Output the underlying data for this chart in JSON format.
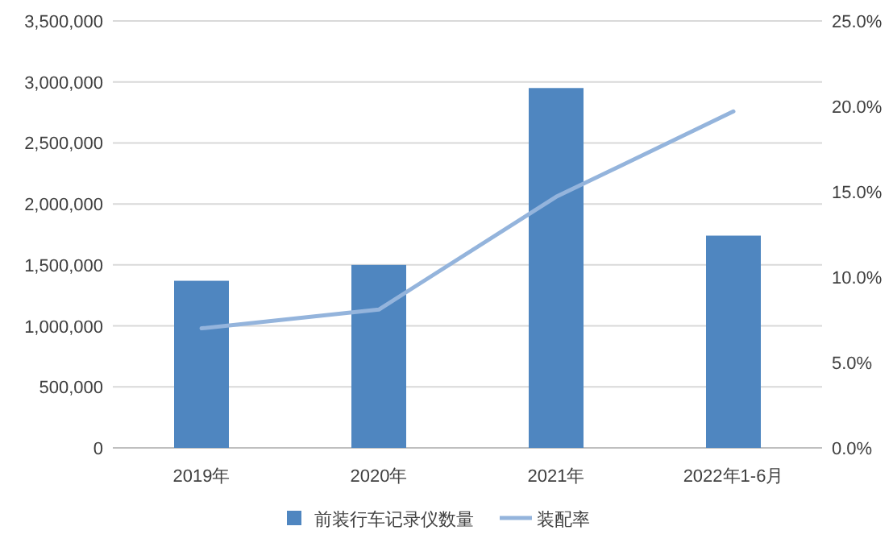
{
  "chart_data": {
    "type": "bar",
    "categories": [
      "2019年",
      "2020年",
      "2021年",
      "2022年1-6月"
    ],
    "series": [
      {
        "name": "前装行车记录仪数量",
        "color": "#4f86c0",
        "values": [
          1370000,
          1500000,
          2950000,
          1740000
        ]
      },
      {
        "name": "装配率",
        "type": "line",
        "axis": "y2",
        "color": "#94b4dc",
        "values": [
          7.0,
          8.1,
          14.7,
          19.7
        ]
      }
    ],
    "ylim": [
      0,
      3500000
    ],
    "yticks": [
      {
        "value": 0,
        "label": "0"
      },
      {
        "value": 500000,
        "label": "500,000"
      },
      {
        "value": 1000000,
        "label": "1,000,000"
      },
      {
        "value": 1500000,
        "label": "1,500,000"
      },
      {
        "value": 2000000,
        "label": "2,000,000"
      },
      {
        "value": 2500000,
        "label": "2,500,000"
      },
      {
        "value": 3000000,
        "label": "3,000,000"
      },
      {
        "value": 3500000,
        "label": "3,500,000"
      }
    ],
    "y2lim": [
      0,
      25
    ],
    "y2ticks": [
      {
        "value": 0,
        "label": "0.0%"
      },
      {
        "value": 5,
        "label": "5.0%"
      },
      {
        "value": 10,
        "label": "10.0%"
      },
      {
        "value": 15,
        "label": "15.0%"
      },
      {
        "value": 20,
        "label": "20.0%"
      },
      {
        "value": 25,
        "label": "25.0%"
      }
    ],
    "grid": "y",
    "legend": "bottom"
  }
}
